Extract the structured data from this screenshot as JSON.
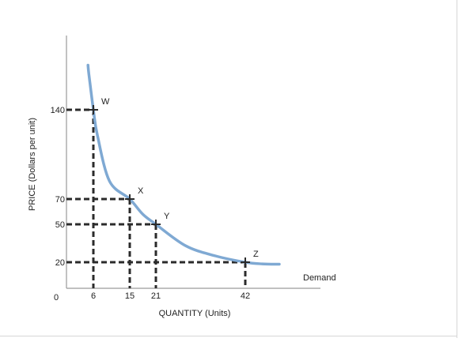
{
  "chart_data": {
    "type": "line",
    "x_label": "QUANTITY (Units)",
    "y_label": "PRICE (Dollars per unit)",
    "origin_label": "0",
    "x_ticks": [
      6,
      15,
      21,
      42
    ],
    "y_ticks": [
      140,
      70,
      50,
      20
    ],
    "curve_label": "Demand",
    "series": [
      {
        "name": "Demand",
        "color": "#7fa9d3",
        "points": [
          [
            4.8,
            175
          ],
          [
            5,
            168
          ],
          [
            6,
            140
          ],
          [
            7,
            120
          ],
          [
            10,
            84
          ],
          [
            15,
            70
          ],
          [
            18,
            58
          ],
          [
            21,
            50
          ],
          [
            28,
            33
          ],
          [
            35,
            25
          ],
          [
            42,
            20
          ],
          [
            46,
            18.7
          ],
          [
            50,
            18.5
          ]
        ]
      }
    ],
    "labeled_points": [
      {
        "label": "W",
        "x": 6,
        "y": 140
      },
      {
        "label": "X",
        "x": 15,
        "y": 70
      },
      {
        "label": "Y",
        "x": 21,
        "y": 50
      },
      {
        "label": "Z",
        "x": 42,
        "y": 20
      }
    ],
    "dashed_guides": true,
    "line_color": "#2b2b2b",
    "axis_color": "#9a9a9a"
  }
}
